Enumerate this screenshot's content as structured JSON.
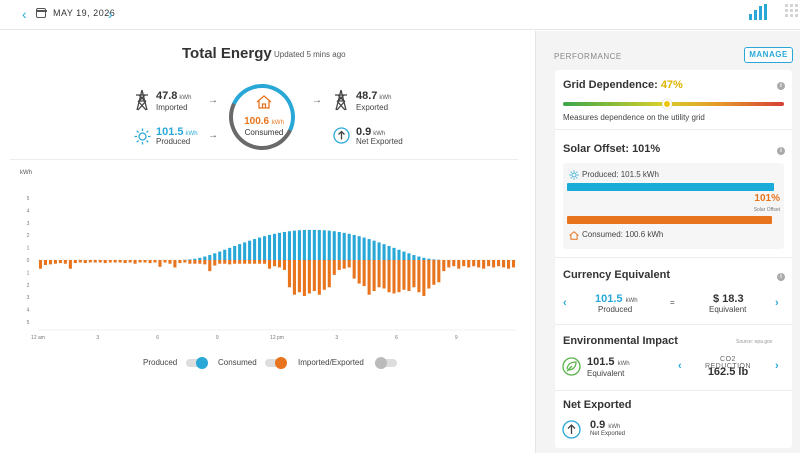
{
  "topbar": {
    "date": "MAY 19, 2026"
  },
  "summary": {
    "title": "Total Energy",
    "updated": "Updated 5 mins ago",
    "imported": {
      "value": "47.8",
      "unit": "kWh",
      "label": "Imported"
    },
    "produced": {
      "value": "101.5",
      "unit": "kWh",
      "label": "Produced"
    },
    "consumed": {
      "value": "100.6",
      "unit": "kWh",
      "label": "Consumed"
    },
    "exported": {
      "value": "48.7",
      "unit": "kWh",
      "label": "Exported"
    },
    "net_exported": {
      "value": "0.9",
      "unit": "kWh",
      "label": "Net Exported"
    }
  },
  "chart_data": {
    "type": "bar",
    "ylabel": "kWh",
    "x_ticks": [
      "12 am",
      "3",
      "6",
      "9",
      "12 pm",
      "3",
      "6",
      "9"
    ],
    "y_ticks_up": [
      "0",
      "1",
      "2",
      "3",
      "4",
      "5"
    ],
    "y_ticks_down": [
      "1",
      "2",
      "3",
      "4",
      "5"
    ],
    "ylim": [
      -5,
      5
    ],
    "interval_minutes": 15,
    "series": [
      {
        "name": "Produced",
        "color": "#29a8d8",
        "values": [
          0,
          0,
          0,
          0,
          0,
          0,
          0,
          0,
          0,
          0,
          0,
          0,
          0,
          0,
          0,
          0,
          0,
          0,
          0,
          0,
          0,
          0,
          0,
          0,
          0,
          0,
          0,
          0,
          0,
          0.02,
          0.05,
          0.1,
          0.18,
          0.28,
          0.4,
          0.54,
          0.68,
          0.83,
          0.98,
          1.13,
          1.28,
          1.42,
          1.56,
          1.69,
          1.81,
          1.92,
          2.02,
          2.11,
          2.19,
          2.26,
          2.32,
          2.37,
          2.4,
          2.42,
          2.43,
          2.43,
          2.42,
          2.4,
          2.37,
          2.32,
          2.26,
          2.19,
          2.11,
          2.02,
          1.92,
          1.81,
          1.69,
          1.56,
          1.42,
          1.28,
          1.13,
          0.98,
          0.83,
          0.68,
          0.54,
          0.4,
          0.28,
          0.18,
          0.1,
          0.05,
          0.02,
          0,
          0,
          0,
          0,
          0,
          0,
          0,
          0,
          0,
          0,
          0,
          0,
          0,
          0,
          0
        ]
      },
      {
        "name": "Consumed",
        "color": "#e8741e",
        "values": [
          -0.7,
          -0.4,
          -0.35,
          -0.3,
          -0.25,
          -0.3,
          -0.7,
          -0.25,
          -0.2,
          -0.25,
          -0.2,
          -0.2,
          -0.2,
          -0.25,
          -0.2,
          -0.2,
          -0.2,
          -0.25,
          -0.2,
          -0.3,
          -0.2,
          -0.2,
          -0.25,
          -0.2,
          -0.55,
          -0.2,
          -0.3,
          -0.6,
          -0.25,
          -0.2,
          -0.3,
          -0.3,
          -0.3,
          -0.35,
          -0.9,
          -0.45,
          -0.3,
          -0.3,
          -0.35,
          -0.3,
          -0.3,
          -0.3,
          -0.3,
          -0.3,
          -0.3,
          -0.3,
          -0.7,
          -0.5,
          -0.6,
          -0.8,
          -2.2,
          -2.8,
          -2.6,
          -2.9,
          -2.7,
          -2.5,
          -2.8,
          -2.4,
          -2.2,
          -1.2,
          -0.8,
          -0.7,
          -0.6,
          -1.5,
          -1.9,
          -2.1,
          -2.8,
          -2.5,
          -2.2,
          -2.3,
          -2.6,
          -2.7,
          -2.6,
          -2.4,
          -2.5,
          -2.2,
          -2.6,
          -2.9,
          -2.3,
          -2.0,
          -1.8,
          -0.9,
          -0.6,
          -0.5,
          -0.7,
          -0.5,
          -0.6,
          -0.5,
          -0.6,
          -0.7,
          -0.5,
          -0.6,
          -0.5,
          -0.6,
          -0.7,
          -0.6
        ]
      }
    ]
  },
  "legend": {
    "produced": "Produced",
    "consumed": "Consumed",
    "imported_exported": "Imported/Exported"
  },
  "performance": {
    "header": "PERFORMANCE",
    "manage": "MANAGE",
    "grid_dependence": {
      "label": "Grid Dependence:",
      "value": "47%",
      "value_fraction": 0.47,
      "desc": "Measures dependence on the utility grid"
    },
    "solar_offset": {
      "title": "Solar Offset: 101%",
      "produced_label": "Produced: 101.5 kWh",
      "pct": "101%",
      "pct_caption": "Solar Offset",
      "consumed_label": "Consumed: 100.6 kWh"
    },
    "currency": {
      "title": "Currency Equivalent",
      "produced_value": "101.5",
      "unit": "kWh",
      "produced_label": "Produced",
      "equals": "=",
      "value": "$ 18.3",
      "value_label": "Equivalent"
    },
    "environmental": {
      "title": "Environmental Impact",
      "source": "Source: epa.gov",
      "value": "101.5",
      "unit": "kWh",
      "label": "Equivalent",
      "co2_title": "CO2 REDUCTION",
      "co2_value": "162.5 lb"
    },
    "net_exported": {
      "title": "Net Exported",
      "value": "0.9",
      "unit": "kWh",
      "label": "Net Exported"
    }
  }
}
